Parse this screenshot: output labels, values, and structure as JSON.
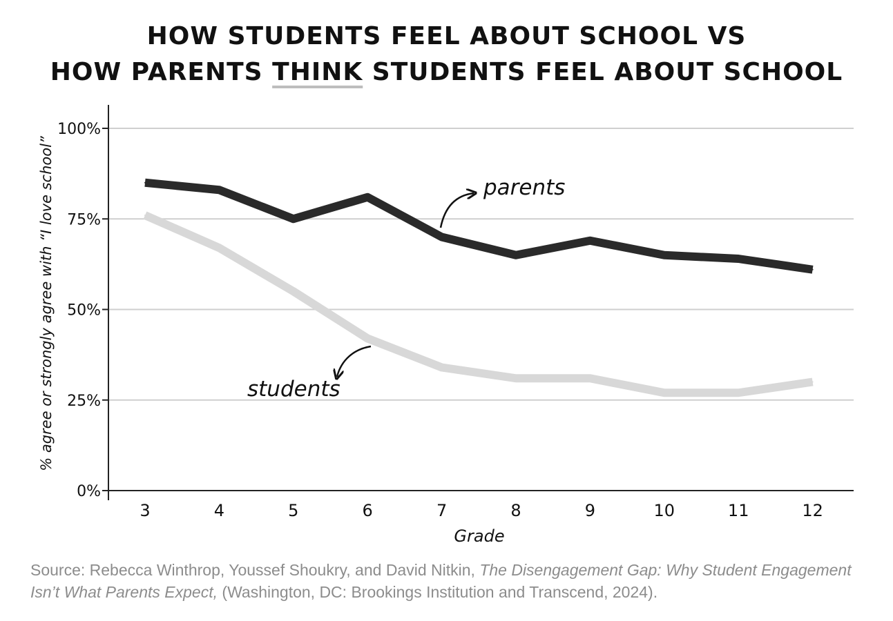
{
  "title": {
    "line1": "HOW STUDENTS FEEL ABOUT SCHOOL VS",
    "line2_before": "HOW PARENTS ",
    "line2_emphasis": "THINK",
    "line2_after": " STUDENTS FEEL ABOUT SCHOOL"
  },
  "source": {
    "prefix": "Source: Rebecca Winthrop, Youssef Shoukry, and David Nitkin, ",
    "italic": "The Disengagement Gap: Why Student Engagement Isn’t What Parents Expect,",
    "suffix": " (Washington, DC: Brookings Institution and Transcend, 2024)."
  },
  "chart_data": {
    "type": "line",
    "title": "HOW STUDENTS FEEL ABOUT SCHOOL VS HOW PARENTS THINK STUDENTS FEEL ABOUT SCHOOL",
    "xlabel": "Grade",
    "ylabel": "% agree or strongly agree with “I love school”",
    "x": [
      3,
      4,
      5,
      6,
      7,
      8,
      9,
      10,
      11,
      12
    ],
    "yticks": [
      "0%",
      "25%",
      "50%",
      "75%",
      "100%"
    ],
    "ylim": [
      0,
      100
    ],
    "grid": true,
    "legend": "inline annotations with arrows",
    "series": [
      {
        "name": "parents",
        "color": "#2a2a2a",
        "values": [
          85,
          83,
          75,
          81,
          70,
          65,
          69,
          65,
          64,
          61
        ]
      },
      {
        "name": "students",
        "color": "#d8d8d8",
        "values": [
          76,
          67,
          55,
          42,
          34,
          31,
          31,
          27,
          27,
          30
        ]
      }
    ]
  }
}
